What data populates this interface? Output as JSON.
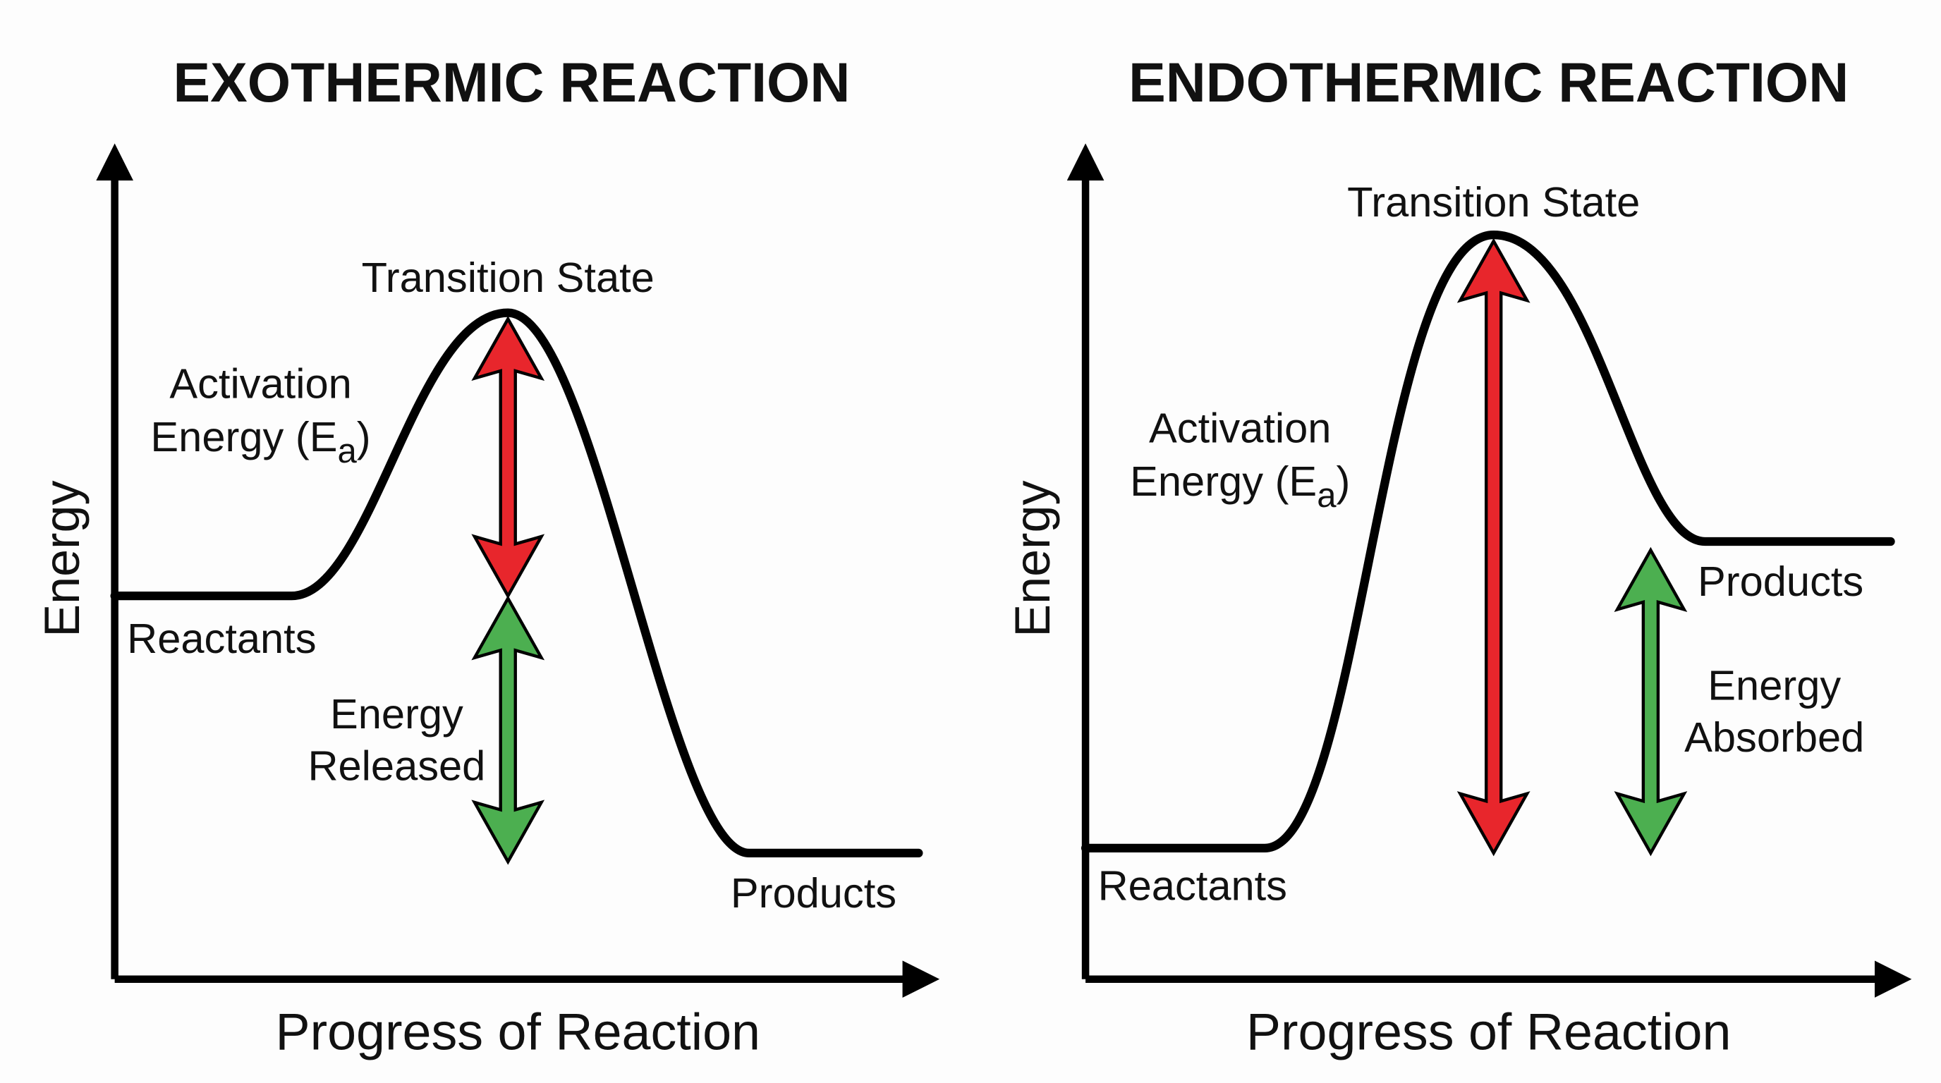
{
  "colors": {
    "activation_arrow": "#e8262c",
    "enthalpy_arrow": "#4caf50",
    "curve": "#000000",
    "background": "#fdfdfd"
  },
  "exothermic": {
    "title": "EXOTHERMIC REACTION",
    "y_axis_label": "Energy",
    "x_axis_label": "Progress of Reaction",
    "transition_state": "Transition State",
    "activation_line1": "Activation",
    "activation_line2": {
      "text": "Energy (E",
      "subscript": "a",
      "close": ")"
    },
    "reactants": "Reactants",
    "products": "Products",
    "energy_line1": "Energy",
    "energy_line2": "Released"
  },
  "endothermic": {
    "title": "ENDOTHERMIC REACTION",
    "y_axis_label": "Energy",
    "x_axis_label": "Progress of Reaction",
    "transition_state": "Transition State",
    "activation_line1": "Activation",
    "activation_line2": {
      "text": "Energy (E",
      "subscript": "a",
      "close": ")"
    },
    "reactants": "Reactants",
    "products": "Products",
    "energy_line1": "Energy",
    "energy_line2": "Absorbed"
  }
}
